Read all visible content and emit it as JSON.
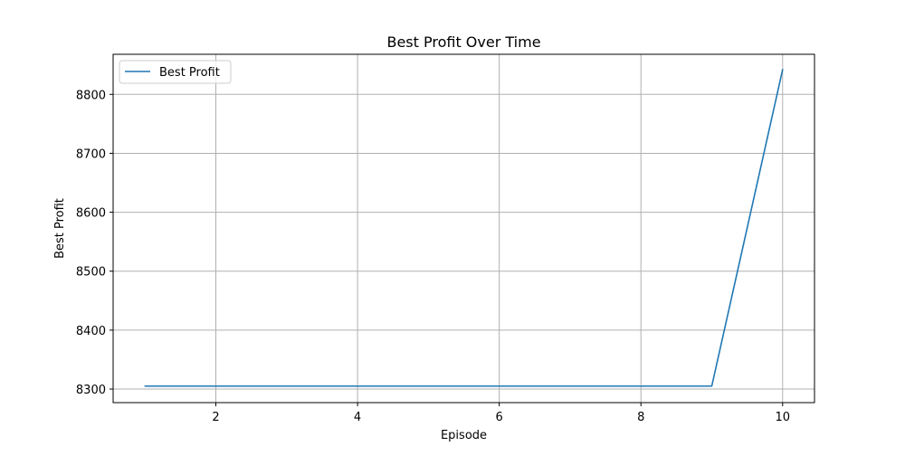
{
  "chart_data": {
    "type": "line",
    "title": "Best Profit Over Time",
    "xlabel": "Episode",
    "ylabel": "Best Profit",
    "xlim": [
      0.55,
      10.45
    ],
    "ylim": [
      8277,
      8868
    ],
    "xticks": [
      2,
      4,
      6,
      8,
      10
    ],
    "yticks": [
      8300,
      8400,
      8500,
      8600,
      8700,
      8800
    ],
    "grid": true,
    "legend_position": "top-left",
    "series": [
      {
        "name": "Best Profit",
        "color": "#1f77b4",
        "x": [
          1,
          2,
          3,
          4,
          5,
          6,
          7,
          8,
          9,
          10
        ],
        "y": [
          8305,
          8305,
          8305,
          8305,
          8305,
          8305,
          8305,
          8305,
          8305,
          8842
        ]
      }
    ]
  }
}
